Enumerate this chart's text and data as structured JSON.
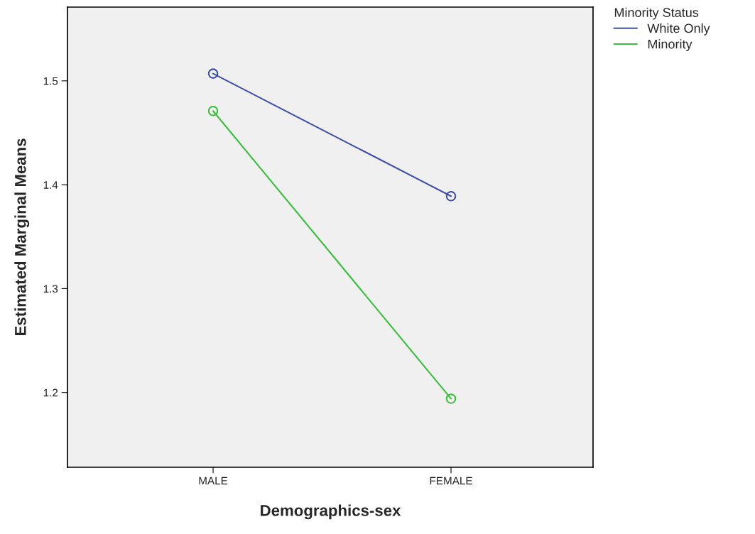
{
  "chart_data": {
    "type": "line",
    "xlabel": "Demographics-sex",
    "ylabel": "Estimated Marginal Means",
    "legend_title": "Minority Status",
    "categories": [
      "MALE",
      "FEMALE"
    ],
    "series": [
      {
        "name": "White Only",
        "color": "#3f51a6",
        "values": [
          1.507,
          1.389
        ]
      },
      {
        "name": "Minority",
        "color": "#3dbd3f",
        "values": [
          1.471,
          1.194
        ]
      }
    ],
    "ylim": [
      1.128,
      1.571
    ],
    "yticks": [
      {
        "value": 1.2,
        "label": "1.2"
      },
      {
        "value": 1.3,
        "label": "1.3"
      },
      {
        "value": 1.4,
        "label": "1.4"
      },
      {
        "value": 1.5,
        "label": "1.5"
      }
    ],
    "grid": false,
    "legend": "top right",
    "marker": "circle",
    "line_style": "solid"
  }
}
